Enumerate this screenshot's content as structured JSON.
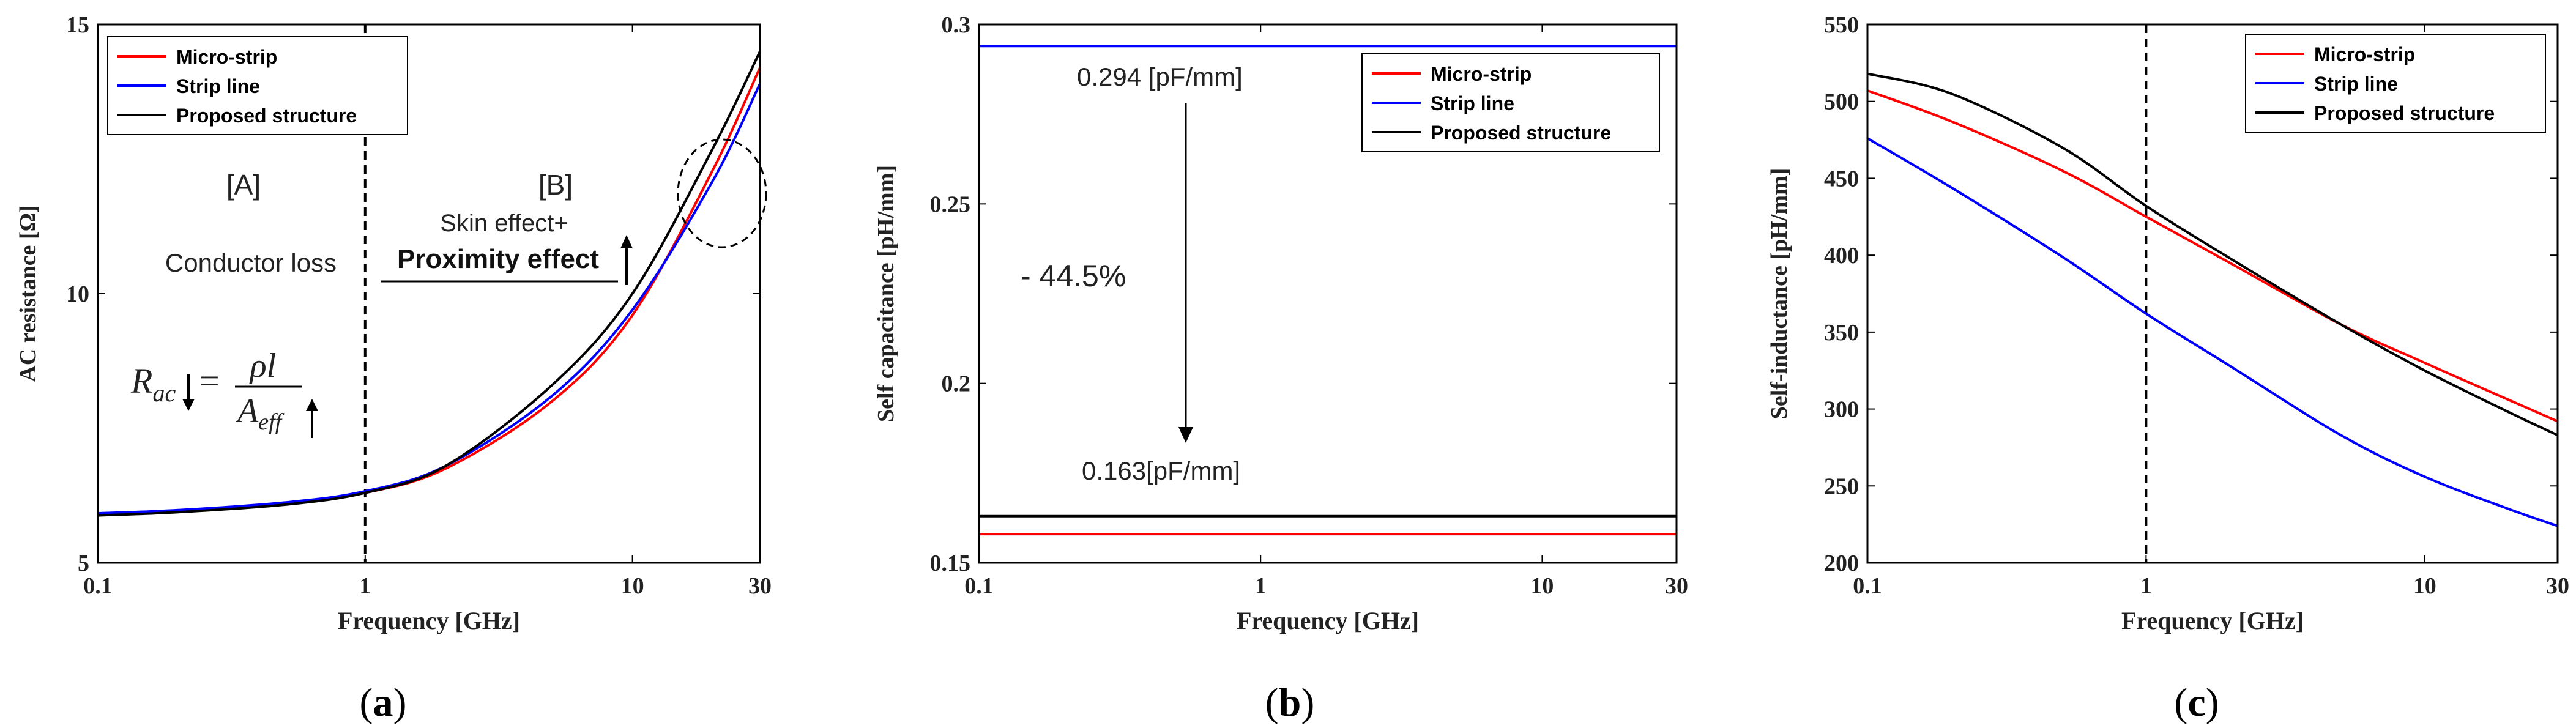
{
  "chart_data": [
    {
      "type": "line",
      "panel_label": "(a)",
      "xlabel": "Frequency [GHz]",
      "ylabel": "AC resistance [Ω]",
      "xscale": "log",
      "xlim": [
        0.1,
        30
      ],
      "ylim": [
        5,
        15
      ],
      "xticks": [
        0.1,
        1,
        10,
        30
      ],
      "xtick_labels": [
        "0.1",
        "1",
        "10",
        "30"
      ],
      "yticks": [
        5,
        10,
        15
      ],
      "ytick_labels": [
        "5",
        "10",
        "15"
      ],
      "legend_position": "top-left",
      "colors": {
        "Micro-strip": "#ff0000",
        "Strip line": "#0000ff",
        "Proposed structure": "#000000"
      },
      "x": [
        0.1,
        0.2,
        0.5,
        1,
        2,
        5,
        10,
        20,
        30
      ],
      "series": [
        {
          "name": "Micro-strip",
          "values": [
            5.9,
            5.96,
            6.1,
            6.3,
            6.75,
            8.0,
            9.6,
            12.3,
            14.2
          ]
        },
        {
          "name": "Strip line",
          "values": [
            5.92,
            5.98,
            6.12,
            6.33,
            6.8,
            8.1,
            9.7,
            12.1,
            13.9
          ]
        },
        {
          "name": "Proposed structure",
          "values": [
            5.88,
            5.94,
            6.08,
            6.3,
            6.8,
            8.3,
            10.0,
            12.7,
            14.5
          ]
        }
      ],
      "annotations": {
        "region_a": "[A]",
        "region_b": "[B]",
        "conductor_loss": "Conductor loss",
        "skin_effect": "Skin effect+",
        "proximity_effect": "Proximity effect",
        "formula_lhs": "R",
        "formula_lhs_sub": "ac",
        "formula_eq": "=",
        "formula_num": "ρl",
        "formula_den": "A",
        "formula_den_sub": "eff"
      },
      "vline_x": 1
    },
    {
      "type": "line",
      "panel_label": "(b)",
      "xlabel": "Frequency [GHz]",
      "ylabel": "Self capacitance [pH/mm]",
      "xscale": "log",
      "xlim": [
        0.1,
        30
      ],
      "ylim": [
        0.15,
        0.3
      ],
      "xticks": [
        0.1,
        1,
        10,
        30
      ],
      "xtick_labels": [
        "0.1",
        "1",
        "10",
        "30"
      ],
      "yticks": [
        0.15,
        0.2,
        0.25,
        0.3
      ],
      "ytick_labels": [
        "0.15",
        "0.2",
        "0.25",
        "0.3"
      ],
      "legend_position": "top-right",
      "colors": {
        "Micro-strip": "#ff0000",
        "Strip line": "#0000ff",
        "Proposed structure": "#000000"
      },
      "x": [
        0.1,
        30
      ],
      "series": [
        {
          "name": "Micro-strip",
          "values": [
            0.158,
            0.158
          ]
        },
        {
          "name": "Strip line",
          "values": [
            0.294,
            0.294
          ]
        },
        {
          "name": "Proposed structure",
          "values": [
            0.163,
            0.163
          ]
        }
      ],
      "annotations": {
        "top_value": "0.294 [pF/mm]",
        "bottom_value": "0.163[pF/mm]",
        "change": "- 44.5%"
      }
    },
    {
      "type": "line",
      "panel_label": "(c)",
      "xlabel": "Frequency [GHz]",
      "ylabel": "Self-inductance [pH/mm]",
      "xscale": "log",
      "xlim": [
        0.1,
        30
      ],
      "ylim": [
        200,
        550
      ],
      "xticks": [
        0.1,
        1,
        10,
        30
      ],
      "xtick_labels": [
        "0.1",
        "1",
        "10",
        "30"
      ],
      "yticks": [
        200,
        250,
        300,
        350,
        400,
        450,
        500,
        550
      ],
      "ytick_labels": [
        "200",
        "250",
        "300",
        "350",
        "400",
        "450",
        "500",
        "550"
      ],
      "legend_position": "top-right",
      "colors": {
        "Micro-strip": "#ff0000",
        "Strip line": "#0000ff",
        "Proposed structure": "#000000"
      },
      "x": [
        0.1,
        0.2,
        0.5,
        1,
        2,
        5,
        10,
        20,
        30
      ],
      "series": [
        {
          "name": "Micro-strip",
          "values": [
            507,
            487,
            455,
            425,
            395,
            355,
            330,
            306,
            292
          ]
        },
        {
          "name": "Strip line",
          "values": [
            476,
            444,
            399,
            362,
            328,
            283,
            256,
            235,
            224
          ]
        },
        {
          "name": "Proposed structure",
          "values": [
            518,
            505,
            470,
            432,
            398,
            355,
            325,
            298,
            283
          ]
        }
      ],
      "vline_x": 1
    }
  ]
}
